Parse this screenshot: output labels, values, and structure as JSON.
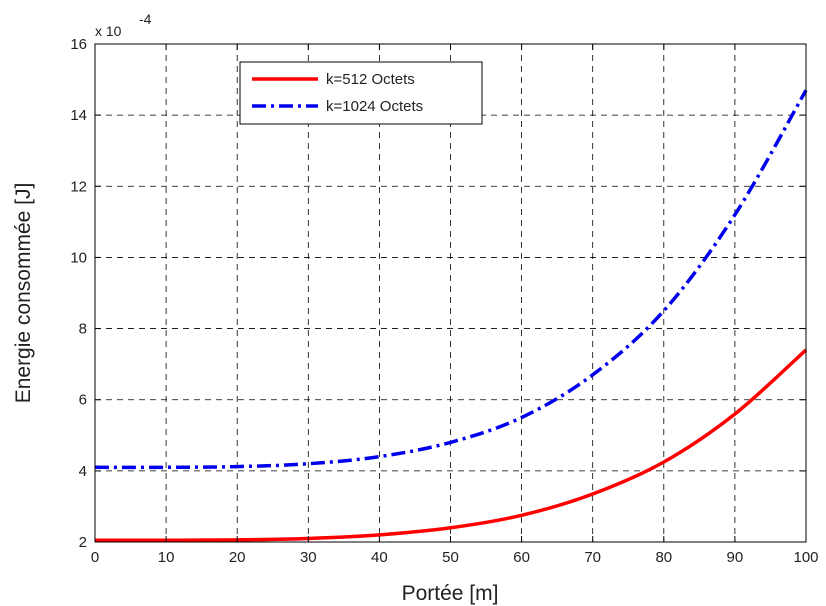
{
  "chart_data": {
    "type": "line",
    "xlabel": "Portée [m]",
    "ylabel": "Energie consommée [J]",
    "y_multiplier": {
      "base": "x 10",
      "exponent": "-4"
    },
    "xlim": [
      0,
      100
    ],
    "ylim": [
      2,
      16
    ],
    "x_ticks": [
      "0",
      "10",
      "20",
      "30",
      "40",
      "50",
      "60",
      "70",
      "80",
      "90",
      "100"
    ],
    "y_ticks": [
      "2",
      "4",
      "6",
      "8",
      "10",
      "12",
      "14",
      "16"
    ],
    "grid": true,
    "legend_position": "top-left",
    "x": [
      0,
      10,
      20,
      30,
      40,
      50,
      60,
      70,
      80,
      90,
      100
    ],
    "series": [
      {
        "name": "k=512 Octets",
        "color": "#ff0000",
        "style": "solid",
        "values": [
          2.05,
          2.05,
          2.06,
          2.1,
          2.2,
          2.4,
          2.75,
          3.35,
          4.25,
          5.6,
          7.4
        ]
      },
      {
        "name": "k=1024 Octets",
        "color": "#0000ee",
        "style": "dashdot",
        "values": [
          4.1,
          4.1,
          4.12,
          4.2,
          4.4,
          4.8,
          5.5,
          6.7,
          8.5,
          11.2,
          14.7
        ]
      }
    ]
  }
}
